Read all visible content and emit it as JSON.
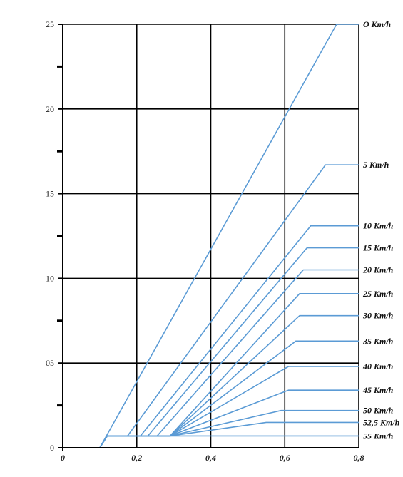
{
  "chart_data": {
    "type": "line",
    "title": "",
    "xlabel": "",
    "ylabel": "",
    "xlim": [
      0,
      0.8
    ],
    "ylim": [
      0,
      25
    ],
    "grid": true,
    "legend": "none",
    "x_ticks": [
      0,
      0.2,
      0.4,
      0.6,
      0.8
    ],
    "x_tick_labels": [
      "0",
      "0,2",
      "0,4",
      "0,6",
      "0,8"
    ],
    "y_ticks": [
      0,
      5,
      10,
      15,
      20,
      25
    ],
    "y_tick_labels": [
      "0",
      "05",
      "10",
      "15",
      "20",
      "25"
    ],
    "y_minor_ticks": [
      2.5,
      7.5,
      12.5,
      17.5,
      22.5
    ],
    "line_color": "#5b9bd5",
    "grid_color": "#000000",
    "series": [
      {
        "name": "O Km/h",
        "points": [
          [
            0.1,
            0
          ],
          [
            0.74,
            25.0
          ],
          [
            0.8,
            25.0
          ]
        ]
      },
      {
        "name": "5 Km/h",
        "points": [
          [
            0.1,
            0
          ],
          [
            0.12,
            0.7
          ],
          [
            0.175,
            0.7
          ],
          [
            0.71,
            16.7
          ],
          [
            0.8,
            16.7
          ]
        ]
      },
      {
        "name": "10 Km/h",
        "points": [
          [
            0.1,
            0
          ],
          [
            0.12,
            0.7
          ],
          [
            0.21,
            0.7
          ],
          [
            0.67,
            13.1
          ],
          [
            0.8,
            13.1
          ]
        ]
      },
      {
        "name": "15 Km/h",
        "points": [
          [
            0.1,
            0
          ],
          [
            0.12,
            0.7
          ],
          [
            0.23,
            0.7
          ],
          [
            0.66,
            11.8
          ],
          [
            0.8,
            11.8
          ]
        ]
      },
      {
        "name": "20 Km/h",
        "points": [
          [
            0.1,
            0
          ],
          [
            0.12,
            0.7
          ],
          [
            0.255,
            0.7
          ],
          [
            0.65,
            10.5
          ],
          [
            0.8,
            10.5
          ]
        ]
      },
      {
        "name": "25 Km/h",
        "points": [
          [
            0.1,
            0
          ],
          [
            0.12,
            0.7
          ],
          [
            0.29,
            0.7
          ],
          [
            0.64,
            9.1
          ],
          [
            0.8,
            9.1
          ]
        ]
      },
      {
        "name": "30 Km/h",
        "points": [
          [
            0.1,
            0
          ],
          [
            0.12,
            0.7
          ],
          [
            0.29,
            0.7
          ],
          [
            0.64,
            7.8
          ],
          [
            0.8,
            7.8
          ]
        ]
      },
      {
        "name": "35 Km/h",
        "points": [
          [
            0.1,
            0
          ],
          [
            0.12,
            0.7
          ],
          [
            0.29,
            0.7
          ],
          [
            0.63,
            6.3
          ],
          [
            0.8,
            6.3
          ]
        ]
      },
      {
        "name": "40 Km/h",
        "points": [
          [
            0.1,
            0
          ],
          [
            0.12,
            0.7
          ],
          [
            0.29,
            0.7
          ],
          [
            0.61,
            4.8
          ],
          [
            0.8,
            4.8
          ]
        ]
      },
      {
        "name": "45 Km/h",
        "points": [
          [
            0.1,
            0
          ],
          [
            0.12,
            0.7
          ],
          [
            0.29,
            0.7
          ],
          [
            0.61,
            3.4
          ],
          [
            0.8,
            3.4
          ]
        ]
      },
      {
        "name": "50 Km/h",
        "points": [
          [
            0.1,
            0
          ],
          [
            0.12,
            0.7
          ],
          [
            0.29,
            0.7
          ],
          [
            0.59,
            2.2
          ],
          [
            0.8,
            2.2
          ]
        ]
      },
      {
        "name": "52,5 Km/h",
        "points": [
          [
            0.1,
            0
          ],
          [
            0.12,
            0.7
          ],
          [
            0.29,
            0.7
          ],
          [
            0.55,
            1.5
          ],
          [
            0.8,
            1.5
          ]
        ]
      },
      {
        "name": "55 Km/h",
        "points": [
          [
            0.1,
            0
          ],
          [
            0.12,
            0.7
          ],
          [
            0.29,
            0.7
          ],
          [
            0.8,
            0.7
          ]
        ]
      }
    ]
  }
}
